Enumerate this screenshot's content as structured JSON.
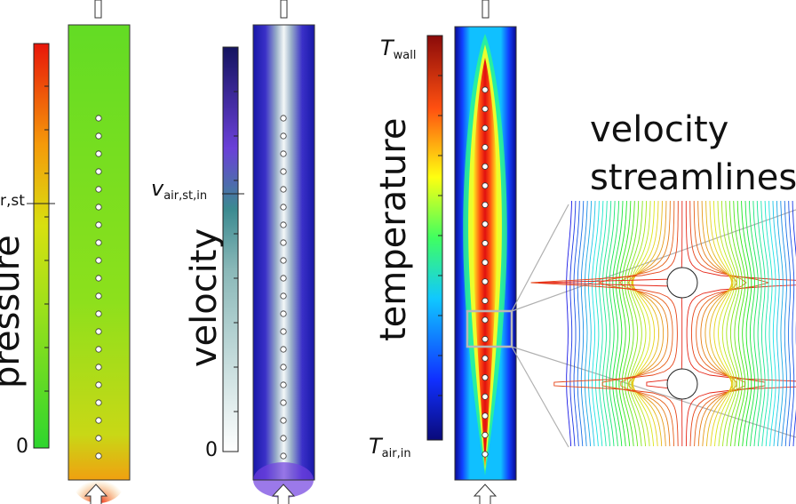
{
  "panels": {
    "pressure": {
      "axis_label": "pressure",
      "zero_label": "0",
      "marker_label": "r,st"
    },
    "velocity": {
      "axis_label": "velocity",
      "zero_label": "0",
      "marker_symbol": "v",
      "marker_subscript": "air,st,in"
    },
    "temperature": {
      "axis_label": "temperature",
      "top_symbol": "T",
      "top_subscript": "wall",
      "bottom_symbol": "T",
      "bottom_subscript": "air,in"
    },
    "streamlines": {
      "title_line1": "velocity",
      "title_line2": "streamlines"
    }
  },
  "colors": {
    "pressure_bg": "#6fdc1e",
    "velocity_bg": "#1a1aa0",
    "temperature_bg": "#0a0a8a",
    "tube_dot": "#ffffff",
    "zoom_box": "#b8b8b8"
  }
}
